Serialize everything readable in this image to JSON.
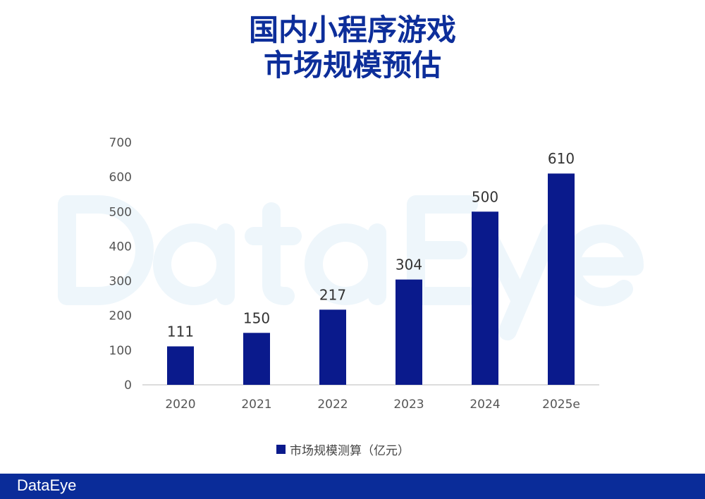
{
  "title_lines": [
    "国内小程序游戏",
    "市场规模预估"
  ],
  "watermark": "DataEye",
  "footer": {
    "logo": "DataEye",
    "color": "#0a2c99"
  },
  "chart_data": {
    "type": "bar",
    "title": "国内小程序游戏 市场规模预估",
    "categories": [
      "2020",
      "2021",
      "2022",
      "2023",
      "2024",
      "2025e"
    ],
    "series": [
      {
        "name": "市场规模测算（亿元）",
        "values": [
          111,
          150,
          217,
          304,
          500,
          610
        ],
        "color": "#0a1a8c"
      }
    ],
    "ylim": [
      0,
      700
    ],
    "yticks": [
      0,
      100,
      200,
      300,
      400,
      500,
      600,
      700
    ],
    "grid": false,
    "legend": "bottom",
    "data_labels": true
  }
}
